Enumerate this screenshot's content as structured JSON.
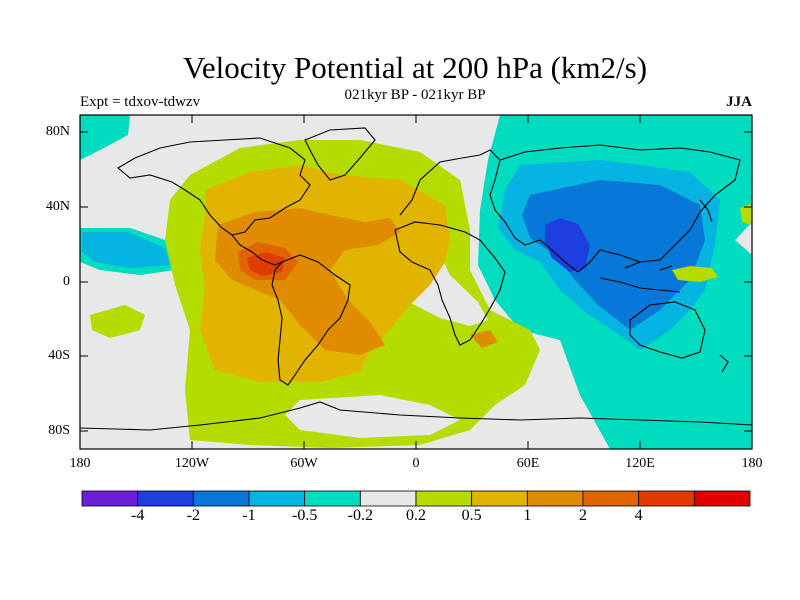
{
  "title": "Velocity Potential at 200 hPa (km2/s)",
  "subtitle": "021kyr BP - 021kyr BP",
  "left_label": "Expt = tdxov-tdwzv",
  "right_label": "JJA",
  "lat_ticks": [
    "80N",
    "40N",
    "0",
    "40S",
    "80S"
  ],
  "lon_ticks": [
    "180",
    "120W",
    "60W",
    "0",
    "60E",
    "120E",
    "180"
  ],
  "colorbar": {
    "colors": [
      "#6a1ed8",
      "#1f3ee0",
      "#0878d8",
      "#05b4e0",
      "#00dcc0",
      "#e8e8e8",
      "#b4dc00",
      "#e0b400",
      "#e08c00",
      "#e06400",
      "#e03c00",
      "#e00000"
    ],
    "labels": [
      "-4",
      "-2",
      "-1",
      "-0.5",
      "-0.2",
      "0.2",
      "0.5",
      "1",
      "2",
      "4"
    ]
  },
  "map": {
    "background_color": "#e8e8e8",
    "contour_levels": [
      -4,
      -2,
      -1,
      -0.5,
      -0.2,
      0.2,
      0.5,
      1,
      2,
      4
    ],
    "level_colors": {
      "-2": "#1f3ee0",
      "-1": "#0878d8",
      "-0.5": "#05b4e0",
      "-0.2": "#00dcc0",
      "0.2": "#b4dc00",
      "0.5": "#e0b400",
      "1": "#e08c00",
      "2": "#e06400",
      "4": "#e03c00"
    }
  }
}
